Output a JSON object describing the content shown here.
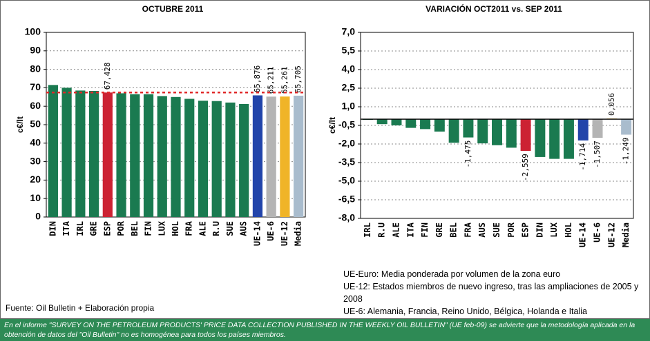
{
  "chart_data": [
    {
      "type": "bar",
      "title": "OCTUBRE 2011",
      "y_label": "c€/lt",
      "categories": [
        "DIN",
        "ITA",
        "IRL",
        "GRE",
        "ESP",
        "POR",
        "BEL",
        "FIN",
        "LUX",
        "HOL",
        "FRA",
        "ALE",
        "R.U",
        "SUE",
        "AUS",
        "UE-14",
        "UE-6",
        "UE-12",
        "Media"
      ],
      "values": [
        71.5,
        70,
        68.5,
        68.3,
        67.428,
        67,
        66.5,
        66.5,
        65.5,
        65,
        64,
        63,
        62.8,
        62,
        61.2,
        65.876,
        65.211,
        65.261,
        65.705
      ],
      "value_labels": [
        null,
        null,
        null,
        null,
        "67,428",
        null,
        null,
        null,
        null,
        null,
        null,
        null,
        null,
        null,
        null,
        "65,876",
        "65,211",
        "65,261",
        "65,705"
      ],
      "colors": [
        "#1a7a50",
        "#1a7a50",
        "#1a7a50",
        "#1a7a50",
        "#cc2233",
        "#1a7a50",
        "#1a7a50",
        "#1a7a50",
        "#1a7a50",
        "#1a7a50",
        "#1a7a50",
        "#1a7a50",
        "#1a7a50",
        "#1a7a50",
        "#1a7a50",
        "#2244aa",
        "#b4b4b4",
        "#f0b428",
        "#a9bccd"
      ],
      "reference_line": {
        "value": 67.428,
        "color": "#e02828"
      },
      "ylim": [
        0,
        100
      ],
      "yticks": [
        0,
        10,
        20,
        30,
        40,
        50,
        60,
        70,
        80,
        90,
        100
      ],
      "grid": true
    },
    {
      "type": "bar",
      "title": "VARIACIÓN OCT2011 vs. SEP 2011",
      "y_label": "c€/lt",
      "categories": [
        "IRL",
        "R.U",
        "ALE",
        "ITA",
        "FIN",
        "GRE",
        "BEL",
        "FRA",
        "AUS",
        "SUE",
        "POR",
        "ESP",
        "DIN",
        "LUX",
        "HOL",
        "UE-14",
        "UE-6",
        "UE-12",
        "Media"
      ],
      "values": [
        -0.05,
        -0.4,
        -0.5,
        -0.7,
        -0.8,
        -1.0,
        -1.9,
        -1.475,
        -1.95,
        -2.1,
        -2.3,
        -2.559,
        -3.05,
        -3.2,
        -3.2,
        -1.714,
        -1.507,
        0.056,
        -1.249
      ],
      "value_labels": [
        null,
        null,
        null,
        null,
        null,
        null,
        null,
        "-1,475",
        null,
        null,
        null,
        "-2,559",
        null,
        null,
        null,
        "-1,714",
        "-1,507",
        "0,056",
        "-1,249"
      ],
      "colors": [
        "#1a7a50",
        "#1a7a50",
        "#1a7a50",
        "#1a7a50",
        "#1a7a50",
        "#1a7a50",
        "#1a7a50",
        "#1a7a50",
        "#1a7a50",
        "#1a7a50",
        "#1a7a50",
        "#cc2233",
        "#1a7a50",
        "#1a7a50",
        "#1a7a50",
        "#2244aa",
        "#b4b4b4",
        "#f0b428",
        "#a9bccd"
      ],
      "ylim": [
        -8,
        7
      ],
      "yticks": [
        {
          "value": 7,
          "label": "7,0"
        },
        {
          "value": 5.5,
          "label": "5,5"
        },
        {
          "value": 4,
          "label": "4,0"
        },
        {
          "value": 2.5,
          "label": "2,5"
        },
        {
          "value": 1,
          "label": "1,0"
        },
        {
          "value": -0.5,
          "label": "-0,5"
        },
        {
          "value": -2,
          "label": "-2,0"
        },
        {
          "value": -3.5,
          "label": "-3,5"
        },
        {
          "value": -5,
          "label": "-5,0"
        },
        {
          "value": -6.5,
          "label": "-6,5"
        },
        {
          "value": -8,
          "label": "-8,0"
        }
      ],
      "grid": true
    }
  ],
  "source": "Fuente: Oil Bulletin + Elaboración propia",
  "notes": [
    "UE-Euro: Media ponderada por volumen de la zona euro",
    "UE-12: Estados miembros de nuevo ingreso, tras las ampliaciones de 2005 y 2008",
    "UE-6: Alemania, Francia, Reino Unido, Bélgica, Holanda e Italia"
  ],
  "footer": "En el informe \"SURVEY ON THE PETROLEUM PRODUCTS' PRICE DATA COLLECTION PUBLISHED IN THE WEEKLY OIL BULLETIN\" (UE  feb-09) se advierte que la metodología aplicada en la obtención de datos del \"Oil Bulletin\" no es homogénea para todos los países miembros."
}
